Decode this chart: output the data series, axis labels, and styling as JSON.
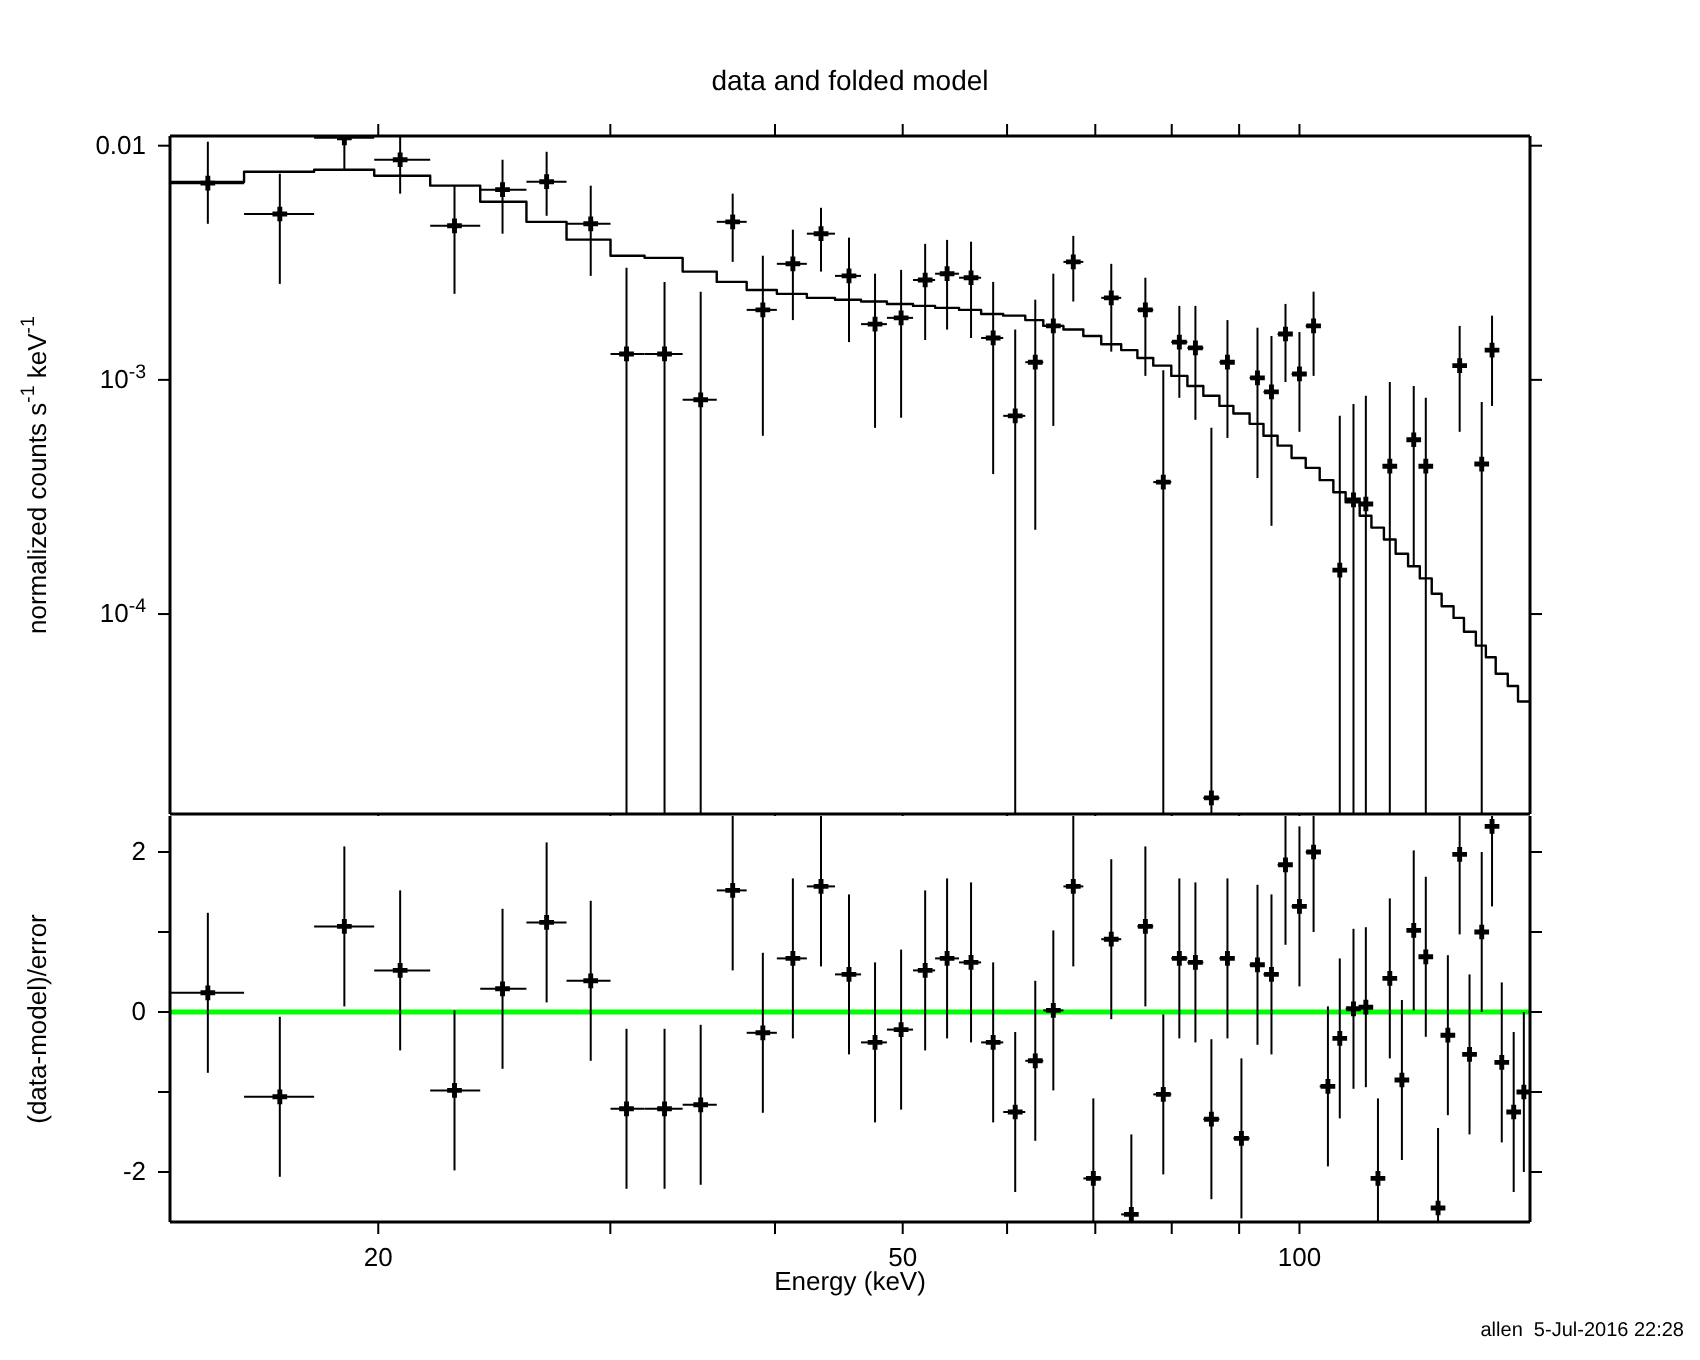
{
  "chart_data": [
    {
      "type": "scatter",
      "title": "data and folded model",
      "ylabel": "normalized counts s$^{-1}$ keV$^{-1}$",
      "xlim": [
        13.9,
        149.6
      ],
      "xticks": [
        20,
        {
          "value": 30,
          "label": null
        },
        {
          "value": 40,
          "label": null
        },
        50,
        {
          "value": 60,
          "label": null
        },
        {
          "value": 70,
          "label": null
        },
        {
          "value": 80,
          "label": null
        },
        {
          "value": 90,
          "label": null
        },
        100
      ],
      "ylim": [
        1.4e-05,
        0.011
      ],
      "yticks": [
        0.01,
        {
          "value": 0.001,
          "label": "10$^{-3}$"
        },
        {
          "value": 0.0001,
          "label": "10$^{-4}$"
        }
      ],
      "log": "xy",
      "tick_labels": "y",
      "marker": "cross",
      "series": [
        {
          "color": "#000000",
          "x": [
            14.85,
            16.84,
            18.85,
            20.78,
            22.85,
            24.85,
            26.84,
            28.99,
            30.86,
            32.98,
            35.13,
            37.15,
            39.16,
            41.27,
            43.35,
            45.52,
            47.64,
            49.86,
            52.0,
            54.03,
            56.34,
            58.56,
            60.86,
            63.03,
            65.05,
            67.36,
            71.98,
            76.4,
            78.83,
            81.07,
            83.38,
            85.74,
            88.18,
            92.93,
            95.23,
            97.59,
            100.0,
            102.5,
            107.3,
            109.9,
            112.3,
            117.1,
            122.1,
            124.7,
            132.3,
            137.5,
            140.0
          ],
          "values": [
            0.00692,
            0.00511,
            0.0108,
            0.00871,
            0.00455,
            0.00649,
            0.00702,
            0.00464,
            0.00129,
            0.00129,
            0.000822,
            0.00473,
            0.00199,
            0.00313,
            0.00421,
            0.00278,
            0.00173,
            0.00184,
            0.00267,
            0.00284,
            0.00273,
            0.00151,
            0.000702,
            0.00119,
            0.0017,
            0.00319,
            0.00224,
            0.00199,
            0.000366,
            0.00145,
            0.00137,
            1.64e-05,
            0.00119,
            0.00102,
            0.000889,
            0.00157,
            0.00106,
            0.0017,
            0.000154,
            0.000307,
            0.000295,
            0.000428,
            0.000555,
            0.000428,
            0.00115,
            0.000437,
            0.00134
          ],
          "errors": [
            [
              0.00464,
              0.0104
            ],
            [
              0.00257,
              0.00759
            ],
            [
              0.00789,
              0.011
            ],
            [
              0.00624,
              0.011
            ],
            [
              0.00233,
              0.00675
            ],
            [
              0.00421,
              0.00871
            ],
            [
              0.00502,
              0.00942
            ],
            [
              0.00278,
              0.00675
            ],
            [
              1.4e-05,
              0.00301
            ],
            [
              1.4e-05,
              0.00262
            ],
            [
              1.4e-05,
              0.00238
            ],
            [
              0.00319,
              0.00624
            ],
            [
              0.000577,
              0.00339
            ],
            [
              0.0018,
              0.00438
            ],
            [
              0.0029,
              0.00543
            ],
            [
              0.00145,
              0.00405
            ],
            [
              0.000624,
              0.00284
            ],
            [
              0.000689,
              0.00295
            ],
            [
              0.00148,
              0.00381
            ],
            [
              0.00164,
              0.00396
            ],
            [
              0.00151,
              0.00389
            ],
            [
              0.000396,
              0.00262
            ],
            [
              1.4e-05,
              0.00164
            ],
            [
              0.000229,
              0.0022
            ],
            [
              0.000636,
              0.00284
            ],
            [
              0.00216,
              0.00412
            ],
            [
              0.00132,
              0.00313
            ],
            [
              0.00104,
              0.00273
            ],
            [
              1.4e-05,
              0.0011
            ],
            [
              0.000838,
              0.00207
            ],
            [
              0.000675,
              0.00207
            ],
            [
              1.4e-05,
              0.000624
            ],
            [
              0.000565,
              0.0018
            ],
            [
              0.000381,
              0.00167
            ],
            [
              0.000238,
              0.00154
            ],
            [
              0.000979,
              0.00211
            ],
            [
              0.0006,
              0.0016
            ],
            [
              0.00104,
              0.00238
            ],
            [
              1.4e-05,
              0.000702
            ],
            [
              1.4e-05,
              0.000789
            ],
            [
              1.4e-05,
              0.000855
            ],
            [
              1.4e-05,
              0.000979
            ],
            [
              0.00016,
              0.000942
            ],
            [
              1.4e-05,
              0.000838
            ],
            [
              0.0006,
              0.0017
            ],
            [
              1.4e-05,
              0.000805
            ],
            [
              0.000774,
              0.00188
            ]
          ],
          "xerrors": [
            [
              13.9,
              15.82
            ],
            [
              15.82,
              17.88
            ],
            [
              17.88,
              19.86
            ],
            [
              19.86,
              21.9
            ],
            [
              21.9,
              23.9
            ],
            [
              23.9,
              25.91
            ],
            [
              25.91,
              27.79
            ],
            [
              27.79,
              30.01
            ],
            [
              30.01,
              31.85
            ],
            [
              31.85,
              34.04
            ],
            [
              34.04,
              36.13
            ],
            [
              36.13,
              38.07
            ],
            [
              38.07,
              40.13
            ],
            [
              40.13,
              42.29
            ],
            [
              42.29,
              44.42
            ],
            [
              44.42,
              46.49
            ],
            [
              46.49,
              48.64
            ],
            [
              48.64,
              50.91
            ],
            [
              50.91,
              52.91
            ],
            [
              52.91,
              55.17
            ],
            [
              55.17,
              57.34
            ],
            [
              57.34,
              59.6
            ],
            [
              59.6,
              61.94
            ],
            [
              61.94,
              63.92
            ],
            [
              63.92,
              66.21
            ],
            [
              66.21,
              68.55
            ],
            [
              70.73,
              73.24
            ],
            [
              75.34,
              77.46
            ],
            [
              77.46,
              79.94
            ],
            [
              79.94,
              82.22
            ],
            [
              82.22,
              84.54
            ],
            [
              84.54,
              86.95
            ],
            [
              86.95,
              89.1
            ],
            [
              91.66,
              93.91
            ],
            [
              93.91,
              96.25
            ],
            [
              96.25,
              98.63
            ],
            [
              98.63,
              101.1
            ],
            [
              101.1,
              103.6
            ],
            [
              106.1,
              108.4
            ],
            [
              108.4,
              111.1
            ],
            [
              111.1,
              113.4
            ],
            [
              115.9,
              118.3
            ],
            [
              120.9,
              123.4
            ],
            [
              123.4,
              126.0
            ],
            [
              130.9,
              133.3
            ],
            [
              136.1,
              138.5
            ],
            [
              138.5,
              140.9
            ]
          ]
        },
        {
          "type": "step",
          "marker": "none",
          "color": "#000000",
          "x": [
            13.9,
            15.82,
            17.88,
            19.86,
            21.9,
            23.9,
            25.91,
            27.79,
            30.01,
            31.85,
            34.04,
            36.13,
            38.07,
            40.13,
            42.29,
            44.42,
            46.49,
            48.64,
            50.91,
            52.91,
            55.17,
            57.34,
            59.6,
            61.94,
            63.92,
            66.21,
            68.55,
            70.73,
            73.24,
            75.34,
            77.46,
            79.94,
            82.22,
            84.54,
            86.95,
            89.1,
            91.66,
            93.91,
            96.25,
            98.63,
            101.1,
            103.6,
            106.1,
            108.4,
            111.1,
            113.4,
            115.9,
            118.3,
            120.9,
            123.4,
            126.0,
            128.2,
            130.9,
            133.3,
            136.1,
            138.5,
            140.9,
            143.9,
            146.5,
            149.6
          ],
          "values": [
            0.007,
            0.00774,
            0.00789,
            0.00744,
            0.00675,
            0.00576,
            0.00473,
            0.00397,
            0.00339,
            0.00332,
            0.0029,
            0.00262,
            0.00242,
            0.00233,
            0.00224,
            0.0022,
            0.00216,
            0.00211,
            0.00207,
            0.00203,
            0.00199,
            0.00191,
            0.00188,
            0.0018,
            0.0017,
            0.00164,
            0.00154,
            0.00142,
            0.00134,
            0.00124,
            0.00115,
            0.00104,
            0.000942,
            0.000855,
            0.000774,
            0.000718,
            0.000649,
            0.000577,
            0.000524,
            0.000464,
            0.000421,
            0.000373,
            0.000331,
            0.0003,
            0.000263,
            0.000234,
            0.000208,
            0.000181,
            0.00016,
            0.000142,
            0.000122,
            0.000108,
            9.63e-05,
            8.4e-05,
            7.33e-05,
            6.54e-05,
            5.56e-05,
            4.93e-05,
            4.23e-05,
            4.23e-05
          ]
        }
      ]
    },
    {
      "type": "scatter",
      "xlabel": "Energy (keV)",
      "ylabel": "(data-model)/error",
      "annotations": [
        "allen  5-Jul-2016 22:28"
      ],
      "xlim": [
        13.9,
        149.6
      ],
      "xticks": [
        20,
        {
          "value": 30,
          "label": null
        },
        {
          "value": 40,
          "label": null
        },
        50,
        {
          "value": 60,
          "label": null
        },
        {
          "value": 70,
          "label": null
        },
        {
          "value": 80,
          "label": null
        },
        {
          "value": 90,
          "label": null
        },
        100
      ],
      "ylim": [
        -2.625,
        2.45
      ],
      "yticks": [
        -2,
        {
          "value": -1,
          "label": null
        },
        0,
        {
          "value": 1,
          "label": null
        },
        2
      ],
      "log": "x",
      "marker": "cross",
      "ref_lines": [
        {
          "axis": "y",
          "value": 0,
          "color": "#00ff00"
        }
      ],
      "series": [
        {
          "color": "#000000",
          "x": [
            14.85,
            16.84,
            18.85,
            20.78,
            22.85,
            24.85,
            26.84,
            28.99,
            30.86,
            32.98,
            35.13,
            37.15,
            39.16,
            41.27,
            43.35,
            45.52,
            47.64,
            49.86,
            52.0,
            54.03,
            56.34,
            58.56,
            60.86,
            63.03,
            65.05,
            67.36,
            69.76,
            71.98,
            74.55,
            76.4,
            78.83,
            81.07,
            83.38,
            85.74,
            88.18,
            90.36,
            92.93,
            95.23,
            97.59,
            100.0,
            102.5,
            105.1,
            107.3,
            109.9,
            112.3,
            114.7,
            117.1,
            119.6,
            122.1,
            124.7,
            127.4,
            129.6,
            132.3,
            134.6,
            137.5,
            140.0,
            142.4,
            145.4,
            148.0
          ],
          "values": [
            0.24,
            -1.06,
            1.07,
            0.52,
            -0.98,
            0.29,
            1.12,
            0.39,
            -1.21,
            -1.21,
            -1.16,
            1.52,
            -0.26,
            0.67,
            1.57,
            0.47,
            -0.38,
            -0.22,
            0.52,
            0.67,
            0.62,
            -0.38,
            -1.25,
            -0.61,
            0.02,
            1.57,
            -2.08,
            0.91,
            -2.53,
            1.07,
            -1.03,
            0.67,
            0.62,
            -1.34,
            0.67,
            -1.58,
            0.59,
            0.47,
            1.84,
            1.32,
            2.0,
            -0.93,
            -0.33,
            0.04,
            0.06,
            -2.08,
            0.42,
            -0.85,
            1.02,
            0.69,
            -2.45,
            -0.29,
            1.97,
            -0.53,
            1.0,
            2.32,
            -0.63,
            -1.25,
            -1.0
          ],
          "errors": [
            1,
            1,
            1,
            1,
            1,
            1,
            1,
            1,
            1,
            1,
            1,
            [
              0.52,
              2.45
            ],
            1,
            1,
            [
              0.57,
              2.45
            ],
            1,
            1,
            1,
            1,
            1,
            1,
            1,
            1,
            1,
            1,
            [
              0.57,
              2.45
            ],
            [
              -2.625,
              -1.08
            ],
            1,
            [
              -2.625,
              -1.53
            ],
            1,
            1,
            1,
            1,
            1,
            1,
            1,
            1,
            1,
            [
              0.84,
              2.45
            ],
            1,
            [
              1.0,
              2.45
            ],
            1,
            1,
            1,
            1,
            [
              -2.625,
              -1.08
            ],
            1,
            1,
            1,
            1,
            [
              -2.625,
              -1.45
            ],
            1,
            [
              0.97,
              2.45
            ],
            1,
            1,
            [
              1.32,
              2.45
            ],
            1,
            1,
            1
          ],
          "xerrors": [
            [
              13.9,
              15.82
            ],
            [
              15.82,
              17.88
            ],
            [
              17.88,
              19.86
            ],
            [
              19.86,
              21.9
            ],
            [
              21.9,
              23.9
            ],
            [
              23.9,
              25.91
            ],
            [
              25.91,
              27.79
            ],
            [
              27.79,
              30.01
            ],
            [
              30.01,
              31.85
            ],
            [
              31.85,
              34.04
            ],
            [
              34.04,
              36.13
            ],
            [
              36.13,
              38.07
            ],
            [
              38.07,
              40.13
            ],
            [
              40.13,
              42.29
            ],
            [
              42.29,
              44.42
            ],
            [
              44.42,
              46.49
            ],
            [
              46.49,
              48.64
            ],
            [
              48.64,
              50.91
            ],
            [
              50.91,
              52.91
            ],
            [
              52.91,
              55.17
            ],
            [
              55.17,
              57.34
            ],
            [
              57.34,
              59.6
            ],
            [
              59.6,
              61.94
            ],
            [
              61.94,
              63.92
            ],
            [
              63.92,
              66.21
            ],
            [
              66.21,
              68.55
            ],
            [
              68.55,
              70.73
            ],
            [
              70.73,
              73.24
            ],
            [
              73.24,
              75.34
            ],
            [
              75.34,
              77.46
            ],
            [
              77.46,
              79.94
            ],
            [
              79.94,
              82.22
            ],
            [
              82.22,
              84.54
            ],
            [
              84.54,
              86.95
            ],
            [
              86.95,
              89.1
            ],
            [
              89.1,
              91.66
            ],
            [
              91.66,
              93.91
            ],
            [
              93.91,
              96.25
            ],
            [
              96.25,
              98.63
            ],
            [
              98.63,
              101.1
            ],
            [
              101.1,
              103.6
            ],
            [
              103.6,
              106.1
            ],
            [
              106.1,
              108.4
            ],
            [
              108.4,
              111.1
            ],
            [
              111.1,
              113.4
            ],
            [
              113.4,
              115.9
            ],
            [
              115.9,
              118.3
            ],
            [
              118.3,
              120.9
            ],
            [
              120.9,
              123.4
            ],
            [
              123.4,
              126.0
            ],
            [
              126.0,
              128.2
            ],
            [
              128.2,
              130.9
            ],
            [
              130.9,
              133.3
            ],
            [
              133.3,
              136.1
            ],
            [
              136.1,
              138.5
            ],
            [
              138.5,
              140.9
            ],
            [
              140.9,
              143.9
            ],
            [
              143.9,
              146.5
            ],
            [
              146.5,
              149.6
            ]
          ]
        }
      ]
    }
  ]
}
